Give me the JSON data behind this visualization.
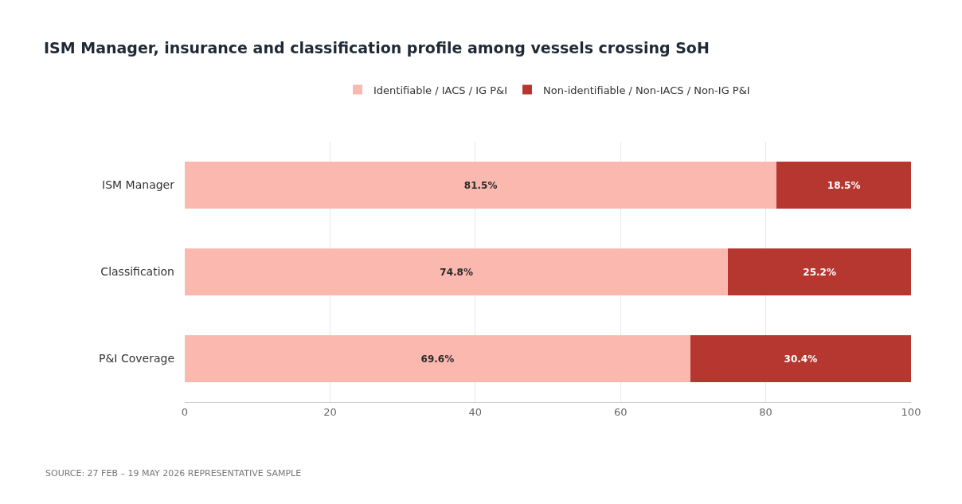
{
  "chart_data": {
    "type": "bar",
    "orientation": "horizontal",
    "stacked": true,
    "title": "ISM Manager, insurance and classification profile among vessels crossing SoH",
    "categories": [
      "ISM Manager",
      "Classification",
      "P&I Coverage"
    ],
    "series": [
      {
        "name": "Identifiable / IACS / IG P&I",
        "color": "#fbb8ae",
        "values": [
          81.5,
          74.8,
          69.6
        ],
        "value_labels": [
          "81.5%",
          "74.8%",
          "69.6%"
        ]
      },
      {
        "name": "Non-identifiable / Non-IACS / Non-IG P&I",
        "color": "#b5372f",
        "values": [
          18.5,
          25.2,
          30.4
        ],
        "value_labels": [
          "18.5%",
          "25.2%",
          "30.4%"
        ]
      }
    ],
    "xlim": [
      0,
      100
    ],
    "xticks": [
      0,
      20,
      40,
      60,
      80,
      100
    ],
    "grid": "x",
    "legend": "top",
    "annotations": [
      "SOURCE: 27 FEB – 19 MAY 2026 REPRESENTATIVE SAMPLE"
    ]
  }
}
